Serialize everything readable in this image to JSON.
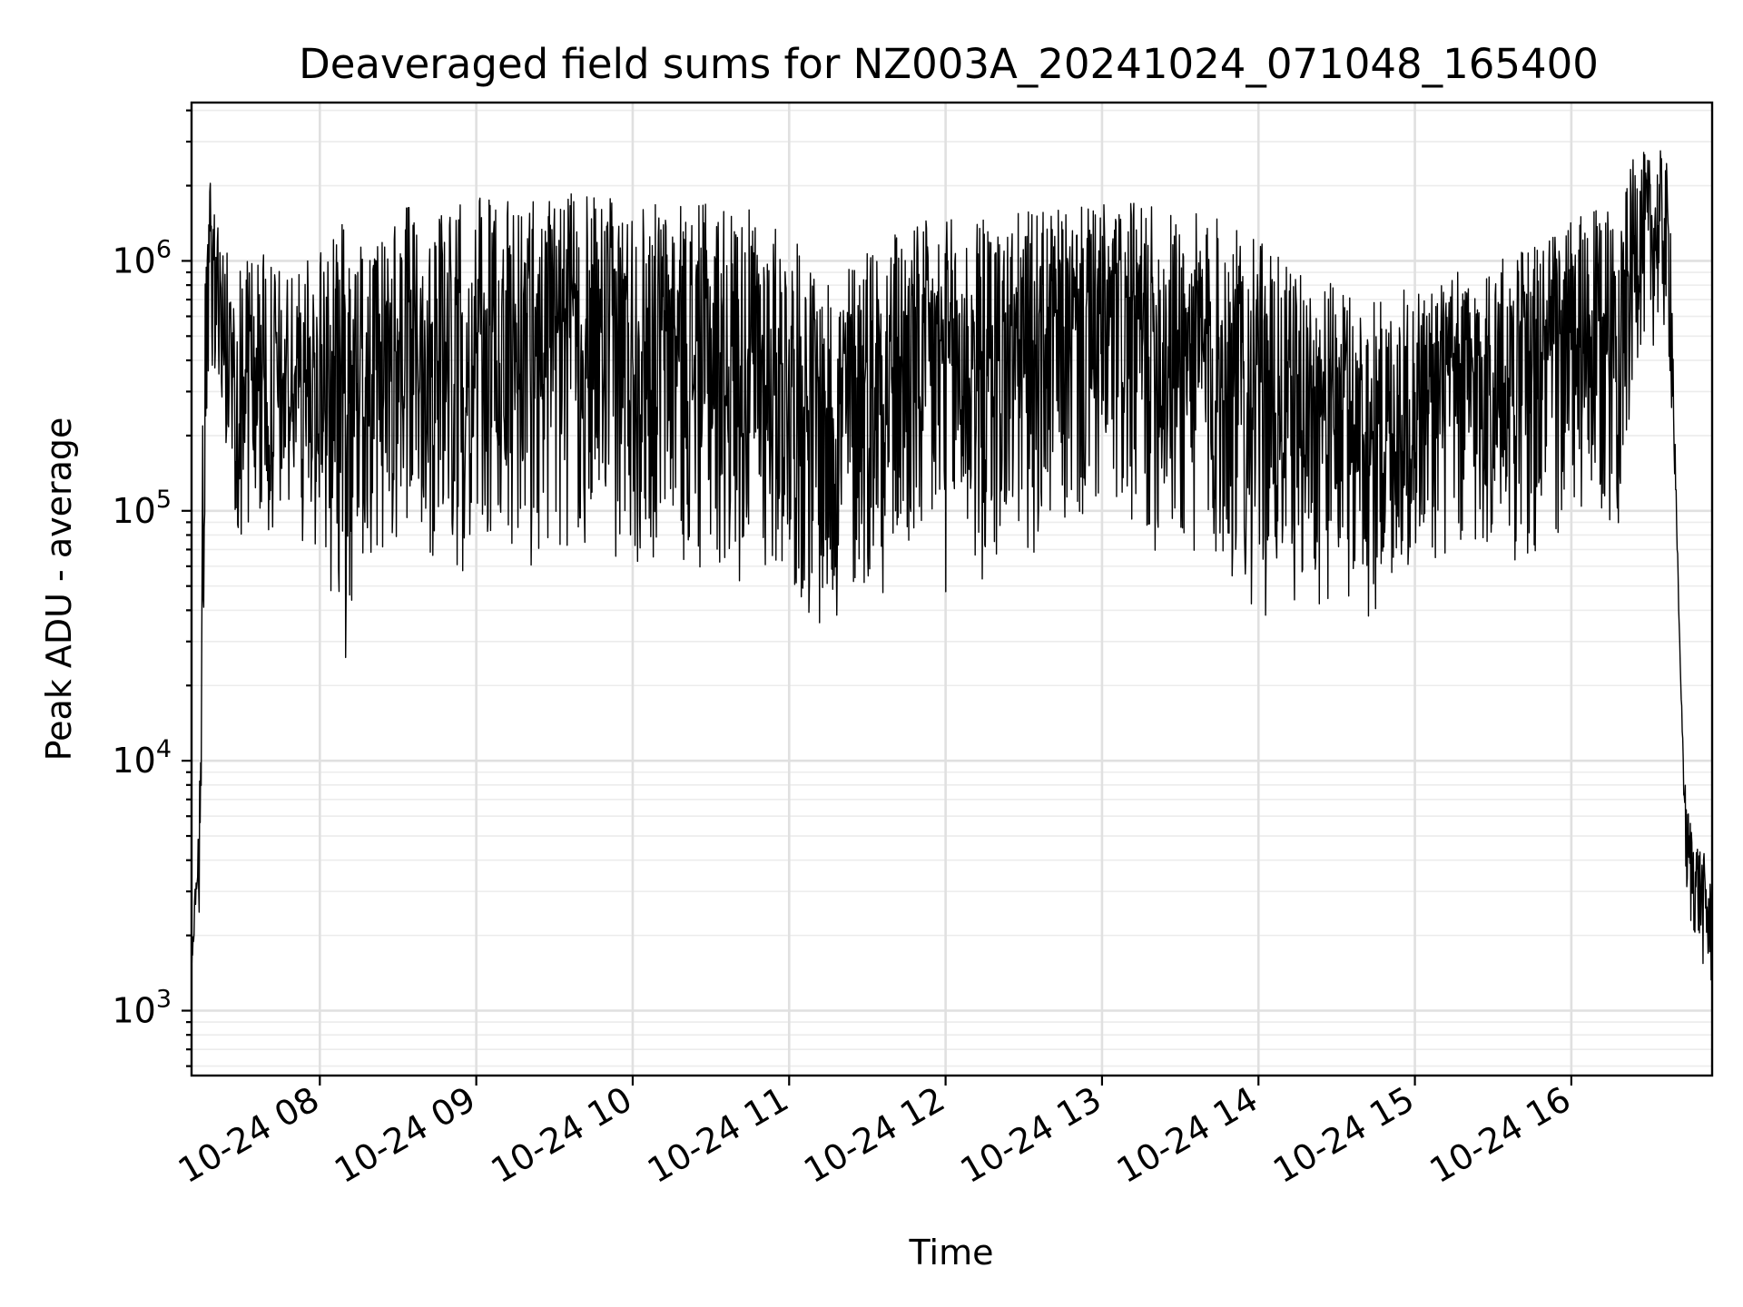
{
  "chart_data": {
    "type": "line",
    "title": "Deaveraged field sums for NZ003A_20241024_071048_165400",
    "xlabel": "Time",
    "ylabel": "Peak ADU - average",
    "yscale": "log",
    "ylim": [
      550,
      4300000
    ],
    "xlim": [
      "2024-10-24 07:10:48",
      "2024-10-24 16:54:00"
    ],
    "grid": true,
    "legend": "none",
    "line_color": "#000000",
    "x_ticks": [
      {
        "t": "2024-10-24 08:00",
        "label": "10-24 08"
      },
      {
        "t": "2024-10-24 09:00",
        "label": "10-24 09"
      },
      {
        "t": "2024-10-24 10:00",
        "label": "10-24 10"
      },
      {
        "t": "2024-10-24 11:00",
        "label": "10-24 11"
      },
      {
        "t": "2024-10-24 12:00",
        "label": "10-24 12"
      },
      {
        "t": "2024-10-24 13:00",
        "label": "10-24 13"
      },
      {
        "t": "2024-10-24 14:00",
        "label": "10-24 14"
      },
      {
        "t": "2024-10-24 15:00",
        "label": "10-24 15"
      },
      {
        "t": "2024-10-24 16:00",
        "label": "10-24 16"
      }
    ],
    "y_ticks": [
      {
        "value": 1000,
        "base": "10",
        "exp": "3"
      },
      {
        "value": 10000,
        "base": "10",
        "exp": "4"
      },
      {
        "value": 100000,
        "base": "10",
        "exp": "5"
      },
      {
        "value": 1000000,
        "base": "10",
        "exp": "6"
      }
    ],
    "series": [
      {
        "x": [
          "2024-10-24 07:10:48",
          "2024-10-24 07:12",
          "2024-10-24 07:13",
          "2024-10-24 07:14",
          "2024-10-24 07:15",
          "2024-10-24 07:16",
          "2024-10-24 07:17",
          "2024-10-24 07:18",
          "2024-10-24 07:20",
          "2024-10-24 07:22",
          "2024-10-24 07:24",
          "2024-10-24 07:26",
          "2024-10-24 07:28",
          "2024-10-24 07:30",
          "2024-10-24 07:35",
          "2024-10-24 07:40",
          "2024-10-24 07:45",
          "2024-10-24 07:50",
          "2024-10-24 07:55",
          "2024-10-24 08:00",
          "2024-10-24 08:10",
          "2024-10-24 08:15",
          "2024-10-24 08:20",
          "2024-10-24 08:30",
          "2024-10-24 08:40",
          "2024-10-24 08:50",
          "2024-10-24 09:00",
          "2024-10-24 09:15",
          "2024-10-24 09:30",
          "2024-10-24 09:45",
          "2024-10-24 10:00",
          "2024-10-24 10:15",
          "2024-10-24 10:30",
          "2024-10-24 10:45",
          "2024-10-24 11:00",
          "2024-10-24 11:15",
          "2024-10-24 11:30",
          "2024-10-24 11:45",
          "2024-10-24 12:00",
          "2024-10-24 12:15",
          "2024-10-24 12:30",
          "2024-10-24 12:45",
          "2024-10-24 13:00",
          "2024-10-24 13:15",
          "2024-10-24 13:30",
          "2024-10-24 13:45",
          "2024-10-24 14:00",
          "2024-10-24 14:15",
          "2024-10-24 14:30",
          "2024-10-24 14:45",
          "2024-10-24 15:00",
          "2024-10-24 15:15",
          "2024-10-24 15:30",
          "2024-10-24 15:45",
          "2024-10-24 16:00",
          "2024-10-24 16:10",
          "2024-10-24 16:20",
          "2024-10-24 16:25",
          "2024-10-24 16:30",
          "2024-10-24 16:35",
          "2024-10-24 16:38",
          "2024-10-24 16:40",
          "2024-10-24 16:42",
          "2024-10-24 16:44",
          "2024-10-24 16:46",
          "2024-10-24 16:48",
          "2024-10-24 16:50",
          "2024-10-24 16:52",
          "2024-10-24 16:54"
        ],
        "y_low": [
          1300,
          2000,
          2500,
          2100,
          8000,
          50000,
          200000,
          400000,
          300000,
          200000,
          100000,
          80000,
          75000,
          70000,
          70000,
          65000,
          70000,
          80000,
          70000,
          65000,
          23000,
          50000,
          55000,
          60000,
          65000,
          55000,
          50000,
          60000,
          55000,
          60000,
          55000,
          60000,
          50000,
          50000,
          45000,
          25000,
          45000,
          45000,
          45000,
          45000,
          60000,
          70000,
          75000,
          70000,
          55000,
          50000,
          35000,
          40000,
          40000,
          33000,
          55000,
          55000,
          58000,
          60000,
          65000,
          70000,
          90000,
          400000,
          420000,
          500000,
          270000,
          90000,
          20000,
          3000,
          1900,
          1800,
          1500,
          1200,
          1100
        ],
        "y_high": [
          1500,
          3000,
          3500,
          12000,
          200000,
          800000,
          1300000,
          2100000,
          1600000,
          1400000,
          1200000,
          1000000,
          900000,
          1000000,
          1200000,
          1000000,
          900000,
          900000,
          1000000,
          1100000,
          1500000,
          1300000,
          1100000,
          1600000,
          1700000,
          1700000,
          1800000,
          1800000,
          1900000,
          1800000,
          1800000,
          1700000,
          1700000,
          1600000,
          1300000,
          800000,
          1300000,
          1400000,
          1500000,
          1500000,
          1600000,
          1600000,
          1700000,
          1700000,
          1600000,
          1500000,
          1200000,
          900000,
          800000,
          700000,
          800000,
          900000,
          1000000,
          1200000,
          1500000,
          1600000,
          1800000,
          2900000,
          2600000,
          2800000,
          2200000,
          150000,
          20000,
          7000,
          6000,
          5000,
          4500,
          4000,
          3000
        ]
      }
    ]
  }
}
